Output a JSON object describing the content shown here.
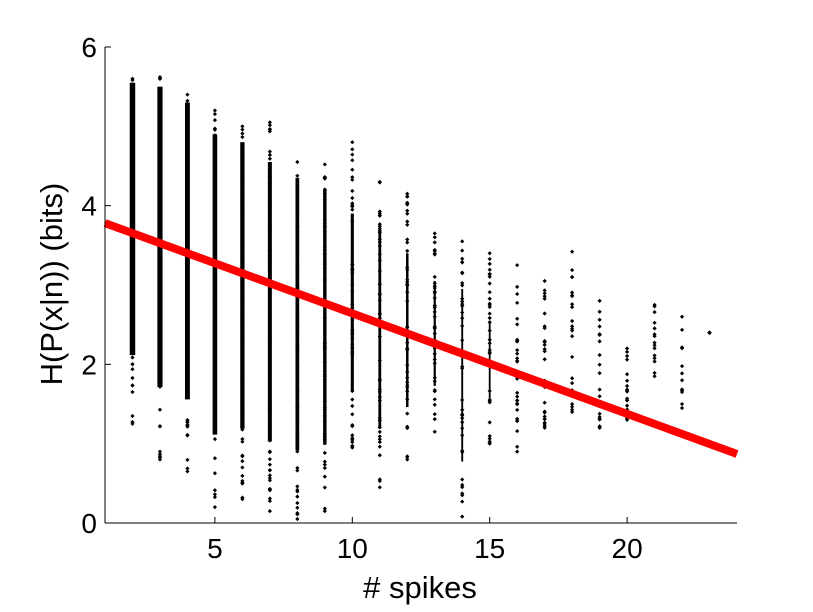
{
  "chart_data": {
    "type": "scatter",
    "title": "",
    "xlabel": "# spikes",
    "ylabel": "H(P(x|n)) (bits)",
    "xlim": [
      1,
      24
    ],
    "ylim": [
      0,
      6
    ],
    "xticks": [
      5,
      10,
      15,
      20
    ],
    "yticks": [
      0,
      2,
      4,
      6
    ],
    "grid": false,
    "colors": {
      "points": "#000000",
      "fit_line": "#ff0000",
      "axes": "#000000"
    },
    "series": [
      {
        "kind": "point-ranges",
        "x": [
          2,
          3,
          4,
          5,
          6,
          7,
          8,
          9,
          10,
          11,
          12,
          13,
          14,
          15,
          16,
          17,
          18,
          19,
          20,
          21,
          22,
          23
        ],
        "y_min": [
          1.25,
          0.8,
          0.65,
          0.2,
          0.3,
          0.15,
          0.05,
          0.15,
          0.95,
          0.45,
          0.8,
          1.15,
          0.08,
          1.0,
          0.9,
          1.2,
          1.4,
          1.2,
          1.3,
          1.85,
          1.45,
          2.4
        ],
        "y_max": [
          5.6,
          5.62,
          5.4,
          5.2,
          5.0,
          5.05,
          4.55,
          4.52,
          4.8,
          4.3,
          4.15,
          3.65,
          3.55,
          3.4,
          3.25,
          3.05,
          3.42,
          2.8,
          2.2,
          2.75,
          2.6,
          2.4
        ],
        "dense_max": [
          5.55,
          5.5,
          5.3,
          4.9,
          4.8,
          4.55,
          4.35,
          4.2,
          3.9,
          3.7,
          3.4,
          3.05,
          2.95,
          2.55,
          2.05,
          2.0,
          1.7,
          1.5,
          1.3,
          2.0,
          1.5,
          2.4
        ]
      },
      {
        "kind": "fit-line",
        "x": [
          1,
          24
        ],
        "y": [
          3.78,
          0.87
        ]
      }
    ]
  }
}
